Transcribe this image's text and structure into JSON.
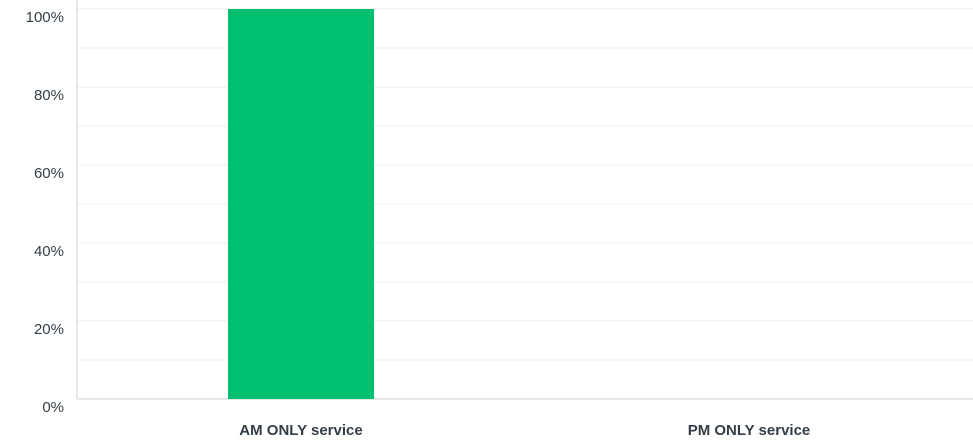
{
  "chart_data": {
    "type": "bar",
    "categories": [
      "AM ONLY service",
      "PM ONLY service"
    ],
    "values": [
      100,
      0
    ],
    "color": "#00bf6f",
    "ylim": [
      0,
      100
    ],
    "yticks": [
      {
        "value": 0,
        "label": "0%"
      },
      {
        "value": 20,
        "label": "20%"
      },
      {
        "value": 40,
        "label": "40%"
      },
      {
        "value": 60,
        "label": "60%"
      },
      {
        "value": 80,
        "label": "80%"
      },
      {
        "value": 100,
        "label": "100%"
      }
    ],
    "minor_yticks": [
      10,
      30,
      50,
      70,
      90
    ],
    "grid": true
  }
}
